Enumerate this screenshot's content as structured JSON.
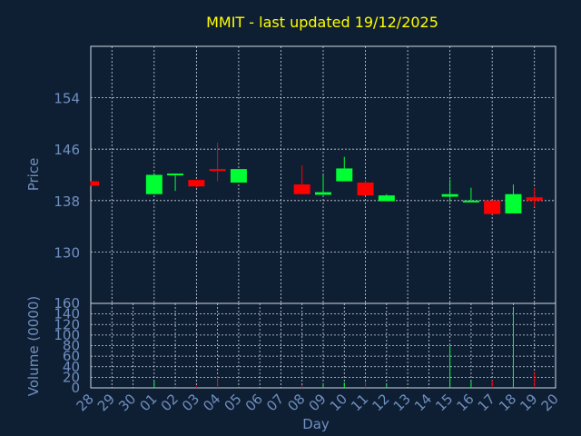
{
  "chart_data": {
    "type": "candlestick",
    "title": "MMIT - last updated 19/12/2025",
    "xlabel": "Day",
    "price_panel": {
      "ylabel": "Price",
      "ylim": [
        122,
        162
      ],
      "yticks": [
        130,
        138,
        146,
        154
      ]
    },
    "volume_panel": {
      "ylabel": "Volume (0000)",
      "ylim": [
        0,
        160
      ],
      "yticks": [
        0,
        20,
        40,
        60,
        80,
        100,
        120,
        140,
        160
      ]
    },
    "categories": [
      "28",
      "29",
      "30",
      "01",
      "02",
      "03",
      "04",
      "05",
      "06",
      "07",
      "08",
      "09",
      "10",
      "11",
      "12",
      "13",
      "14",
      "15",
      "16",
      "17",
      "18",
      "19",
      "20"
    ],
    "candles": [
      {
        "day": "28",
        "open": 141.0,
        "high": 141.0,
        "low": 140.3,
        "close": 140.3,
        "volume": 0
      },
      {
        "day": "01",
        "open": 139.0,
        "high": 142.3,
        "low": 139.0,
        "close": 142.0,
        "volume": 12
      },
      {
        "day": "02",
        "open": 142.0,
        "high": 142.2,
        "low": 139.5,
        "close": 142.2,
        "volume": 2
      },
      {
        "day": "03",
        "open": 141.2,
        "high": 141.2,
        "low": 140.0,
        "close": 140.2,
        "volume": 3
      },
      {
        "day": "04",
        "open": 142.9,
        "high": 147.0,
        "low": 141.0,
        "close": 142.6,
        "volume": 22
      },
      {
        "day": "05",
        "open": 140.8,
        "high": 142.9,
        "low": 140.8,
        "close": 142.9,
        "volume": 2
      },
      {
        "day": "08",
        "open": 140.5,
        "high": 143.5,
        "low": 139.0,
        "close": 139.0,
        "volume": 5
      },
      {
        "day": "09",
        "open": 138.9,
        "high": 142.0,
        "low": 138.9,
        "close": 139.3,
        "volume": 6
      },
      {
        "day": "10",
        "open": 141.0,
        "high": 144.8,
        "low": 141.0,
        "close": 143.0,
        "volume": 10
      },
      {
        "day": "11",
        "open": 140.8,
        "high": 141.2,
        "low": 138.8,
        "close": 138.8,
        "volume": 11
      },
      {
        "day": "12",
        "open": 137.9,
        "high": 139.0,
        "low": 137.9,
        "close": 138.8,
        "volume": 6
      },
      {
        "day": "15",
        "open": 138.6,
        "high": 141.3,
        "low": 137.8,
        "close": 139.0,
        "volume": 80
      },
      {
        "day": "16",
        "open": 137.8,
        "high": 140.0,
        "low": 137.8,
        "close": 138.0,
        "volume": 12
      },
      {
        "day": "17",
        "open": 138.0,
        "high": 138.0,
        "low": 135.9,
        "close": 135.9,
        "volume": 15
      },
      {
        "day": "18",
        "open": 136.0,
        "high": 140.5,
        "low": 136.0,
        "close": 139.0,
        "volume": 150
      },
      {
        "day": "19",
        "open": 138.5,
        "high": 140.0,
        "low": 137.0,
        "close": 138.0,
        "volume": 30
      }
    ],
    "colors": {
      "background": "#0f1f33",
      "up": "#00ff33",
      "down": "#ff0000",
      "axis_text": "#6f8fc0",
      "title": "#ffff00",
      "grid": "#cfd8e6"
    },
    "grid": true
  }
}
